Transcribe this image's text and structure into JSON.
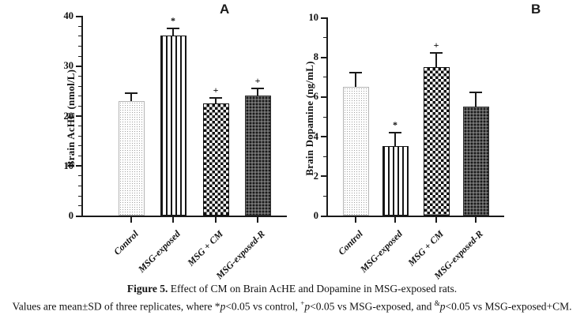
{
  "figure": {
    "caption_title_bold": "Figure 5.",
    "caption_title_rest": " Effect of CM on Brain AcHE and Dopamine in MSG-exposed rats.",
    "caption_note_segments": [
      {
        "text": "Values are mean±SD of three replicates, where *"
      },
      {
        "text": "p",
        "italic": true
      },
      {
        "text": "<0.05 vs control, "
      },
      {
        "text": "+",
        "sup": true
      },
      {
        "text": "p",
        "italic": true
      },
      {
        "text": "<0.05 vs MSG-exposed, and "
      },
      {
        "text": "&",
        "sup": true
      },
      {
        "text": "p",
        "italic": true
      },
      {
        "text": "<0.05 vs MSG-exposed+CM."
      }
    ]
  },
  "chart_data": [
    {
      "type": "bar",
      "panel_label": "A",
      "title": "",
      "xlabel": "",
      "ylabel": "Brain AcHE (nmol/L)",
      "ylim": [
        0,
        40
      ],
      "yticks": [
        0,
        10,
        20,
        30,
        40
      ],
      "minor_tick_step": 2,
      "grid": false,
      "legend": "none",
      "categories": [
        "Control",
        "MSG-exposed",
        "MSG + CM",
        "MSG-exposed-R"
      ],
      "values": [
        23,
        36,
        22.5,
        24
      ],
      "errors_upper_sd": [
        1.5,
        1.5,
        1.0,
        1.5
      ],
      "significance_markers": [
        "",
        "*",
        "+",
        "+"
      ],
      "bar_patterns": [
        "light-dots",
        "vertical-stripes",
        "checkerboard",
        "dark-weave"
      ],
      "bar_outline_color": "#1a1a1a"
    },
    {
      "type": "bar",
      "panel_label": "B",
      "title": "",
      "xlabel": "",
      "ylabel": "Brain Dopamine (ng/mL)",
      "ylim": [
        0,
        10
      ],
      "yticks": [
        0,
        2,
        4,
        6,
        8,
        10
      ],
      "minor_tick_step": 1,
      "grid": false,
      "legend": "none",
      "categories": [
        "Control",
        "MSG-exposed",
        "MSG + CM",
        "MSG-exposed-R"
      ],
      "values": [
        6.5,
        3.5,
        7.5,
        5.5
      ],
      "errors_upper_sd": [
        0.7,
        0.7,
        0.7,
        0.7
      ],
      "significance_markers": [
        "",
        "*",
        "+",
        ""
      ],
      "bar_patterns": [
        "light-dots",
        "vertical-stripes",
        "checkerboard",
        "dark-weave"
      ],
      "bar_outline_color": "#1a1a1a"
    }
  ],
  "colors": {
    "axis": "#1a1a1a",
    "text": "#111111",
    "background": "#ffffff"
  }
}
